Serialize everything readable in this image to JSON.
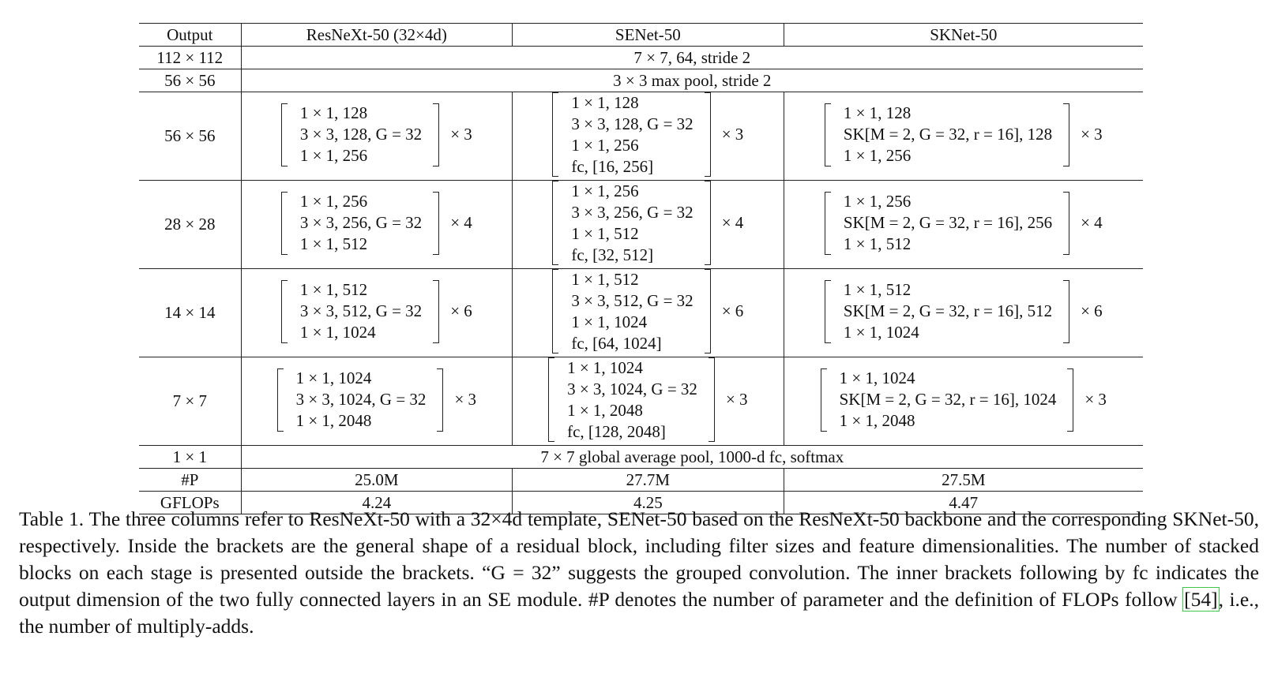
{
  "table": {
    "headers": [
      "Output",
      "ResNeXt-50 (32×4d)",
      "SENet-50",
      "SKNet-50"
    ],
    "stem_rows": [
      {
        "output": "112 × 112",
        "shared": "7 × 7, 64, stride 2"
      },
      {
        "output": "56 × 56",
        "shared": "3 × 3 max pool, stride 2"
      }
    ],
    "stages": [
      {
        "output": "56 × 56",
        "resnext": {
          "lines": [
            "1 × 1, 128",
            "3 × 3, 128, G = 32",
            "1 × 1, 256"
          ],
          "repeat": "× 3"
        },
        "senet": {
          "lines": [
            "1 × 1, 128",
            "3 × 3, 128, G = 32",
            "1 × 1, 256",
            "fc, [16, 256]"
          ],
          "repeat": "× 3"
        },
        "sknet": {
          "lines": [
            "1 × 1, 128",
            "SK[M = 2, G = 32, r = 16], 128",
            "1 × 1, 256"
          ],
          "repeat": "× 3"
        }
      },
      {
        "output": "28 × 28",
        "resnext": {
          "lines": [
            "1 × 1, 256",
            "3 × 3, 256, G = 32",
            "1 × 1, 512"
          ],
          "repeat": "× 4"
        },
        "senet": {
          "lines": [
            "1 × 1, 256",
            "3 × 3, 256, G = 32",
            "1 × 1, 512",
            "fc, [32, 512]"
          ],
          "repeat": "× 4"
        },
        "sknet": {
          "lines": [
            "1 × 1, 256",
            "SK[M = 2, G = 32, r = 16], 256",
            "1 × 1, 512"
          ],
          "repeat": "× 4"
        }
      },
      {
        "output": "14 × 14",
        "resnext": {
          "lines": [
            "1 × 1, 512",
            "3 × 3, 512, G = 32",
            "1 × 1, 1024"
          ],
          "repeat": "× 6"
        },
        "senet": {
          "lines": [
            "1 × 1, 512",
            "3 × 3, 512, G = 32",
            "1 × 1, 1024",
            "fc, [64, 1024]"
          ],
          "repeat": "× 6"
        },
        "sknet": {
          "lines": [
            "1 × 1, 512",
            "SK[M = 2, G = 32, r = 16], 512",
            "1 × 1, 1024"
          ],
          "repeat": "× 6"
        }
      },
      {
        "output": "7 × 7",
        "resnext": {
          "lines": [
            "1 × 1, 1024",
            "3 × 3, 1024, G = 32",
            "1 × 1, 2048"
          ],
          "repeat": "× 3"
        },
        "senet": {
          "lines": [
            "1 × 1, 1024",
            "3 × 3, 1024, G = 32",
            "1 × 1, 2048",
            "fc, [128, 2048]"
          ],
          "repeat": "× 3"
        },
        "sknet": {
          "lines": [
            "1 × 1, 1024",
            "SK[M = 2, G = 32, r = 16], 1024",
            "1 × 1, 2048"
          ],
          "repeat": "× 3"
        }
      }
    ],
    "head_row": {
      "output": "1 × 1",
      "shared": "7 × 7 global average pool, 1000-d fc, softmax"
    },
    "params_row": {
      "label": "#P",
      "values": [
        "25.0M",
        "27.7M",
        "27.5M"
      ]
    },
    "flops_row": {
      "label": "GFLOPs",
      "values": [
        "4.24",
        "4.25",
        "4.47"
      ]
    }
  },
  "caption": {
    "part1": "Table 1. The three columns refer to ResNeXt-50 with a 32×4d template, SENet-50 based on the ResNeXt-50 backbone and the corresponding SKNet-50, respectively. Inside the brackets are the general shape of a residual block, including filter sizes and feature dimensionalities. The number of stacked blocks on each stage is presented outside the brackets. “G = 32” suggests the grouped convolution. The inner brackets following by fc indicates the output dimension of the two fully connected layers in an SE module. #P denotes the number of parameter and the definition of FLOPs follow ",
    "citation": "[54]",
    "part2": ", i.e., the number of multiply-adds."
  }
}
